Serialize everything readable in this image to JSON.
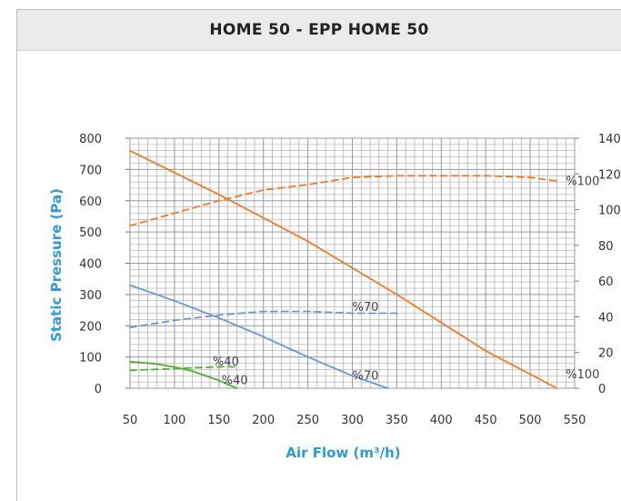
{
  "title": "HOME 50 - EPP HOME 50",
  "colors": {
    "orange": "#f07a2a",
    "blue": "#6d96d1",
    "green": "#55ad3b",
    "axis_title": "#2e9bd6",
    "grid": "#9a9a9a"
  },
  "chart_data": {
    "type": "line",
    "title": "HOME 50 - EPP HOME 50",
    "xlabel": "Air Flow (m³/h)",
    "ylabel": "Static Pressure (Pa)",
    "xlim": [
      50,
      550
    ],
    "ylim": [
      0,
      800
    ],
    "y2lim": [
      0,
      140
    ],
    "x_ticks": [
      "50",
      "100",
      "150",
      "200",
      "250",
      "300",
      "350",
      "400",
      "450",
      "500",
      "550"
    ],
    "y_ticks": [
      "0",
      "100",
      "200",
      "300",
      "400",
      "500",
      "600",
      "700",
      "800"
    ],
    "y2_ticks": [
      "0",
      "20",
      "40",
      "60",
      "80",
      "100",
      "120",
      "140"
    ],
    "grid": true,
    "series": [
      {
        "name": "%100",
        "axis": "left",
        "style": "solid",
        "color": "#f07a2a",
        "x": [
          50,
          150,
          250,
          350,
          450,
          530
        ],
        "y": [
          760,
          620,
          470,
          300,
          120,
          0
        ]
      },
      {
        "name": "%70",
        "axis": "left",
        "style": "solid",
        "color": "#6d96d1",
        "x": [
          50,
          100,
          150,
          200,
          250,
          300,
          340
        ],
        "y": [
          330,
          280,
          225,
          165,
          100,
          40,
          0
        ]
      },
      {
        "name": "%40",
        "axis": "left",
        "style": "solid",
        "color": "#55ad3b",
        "x": [
          50,
          80,
          100,
          120,
          150,
          170
        ],
        "y": [
          85,
          78,
          68,
          55,
          25,
          0
        ]
      },
      {
        "name": "%100",
        "axis": "right",
        "style": "dashed",
        "color": "#f07a2a",
        "x": [
          50,
          100,
          150,
          200,
          250,
          300,
          350,
          400,
          450,
          500,
          530
        ],
        "y": [
          91,
          98,
          105,
          111,
          114,
          118,
          119,
          119,
          119,
          118,
          116
        ]
      },
      {
        "name": "%70",
        "axis": "right",
        "style": "dashed",
        "color": "#6d96d1",
        "x": [
          50,
          100,
          150,
          200,
          250,
          300,
          350
        ],
        "y": [
          34,
          38,
          41,
          43,
          43,
          42,
          42
        ]
      },
      {
        "name": "%40",
        "axis": "right",
        "style": "dashed",
        "color": "#55ad3b",
        "x": [
          50,
          100,
          150,
          170
        ],
        "y": [
          10,
          11,
          12,
          12
        ]
      }
    ],
    "curve_labels": [
      {
        "text": "%100",
        "x": 540,
        "y": 665
      },
      {
        "text": "%100",
        "x": 540,
        "y": 47
      },
      {
        "text": "%70",
        "x": 300,
        "y": 262
      },
      {
        "text": "%70",
        "x": 300,
        "y": 42
      },
      {
        "text": "%40",
        "x": 143,
        "y": 88
      },
      {
        "text": "%40",
        "x": 153,
        "y": 28
      }
    ]
  }
}
